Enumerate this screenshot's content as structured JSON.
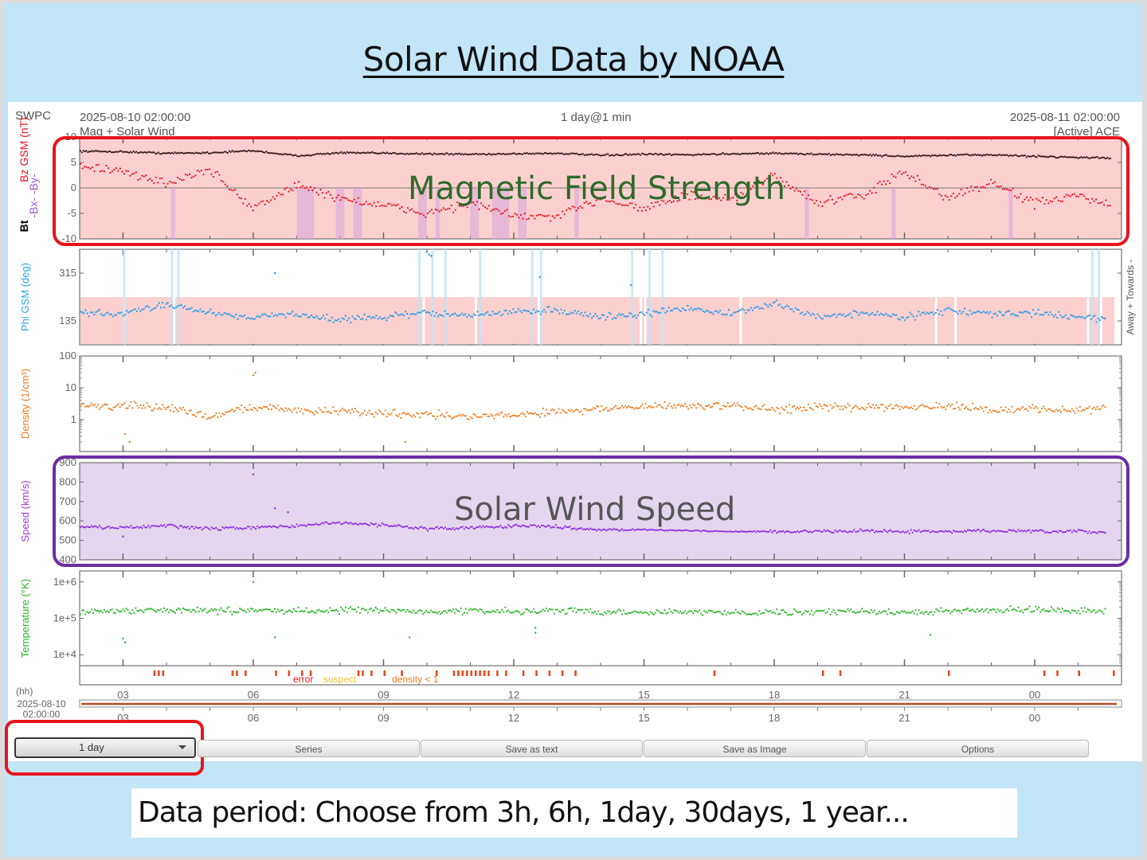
{
  "slide": {
    "title": "Solar Wind Data by NOAA",
    "note": "Data period: Choose  from 3h, 6h, 1day, 30days, 1 year...",
    "callouts": {
      "magnetic": "Magnetic Field Strength",
      "speed": "Solar Wind Speed"
    },
    "colors": {
      "background": "#c3e5f8",
      "magnetic_box": "#e8141c",
      "speed_box": "#6a2ea0",
      "period_box": "#e8141c",
      "magnetic_text": "#2f6b2a",
      "speed_text": "#555555"
    }
  },
  "header": {
    "source": "SWPC",
    "start": "2025-08-10 02:00:00",
    "subtitle": "Mag + Solar Wind",
    "resolution": "1 day@1 min",
    "end": "2025-08-11 02:00:00",
    "spacecraft": "[Active] ACE"
  },
  "controls": {
    "period": "1 day",
    "buttons": [
      "Series",
      "Save as text",
      "Save as Image",
      "Options"
    ]
  },
  "chart_data": [
    {
      "type": "scatter",
      "id": "mag",
      "title": "Magnetic field",
      "ylabel_parts": [
        {
          "text": "Bt",
          "color": "#000000"
        },
        {
          "text": "-Bx- -By-",
          "color": "#9b59d0"
        },
        {
          "text": "Bz GSM (nT)",
          "color": "#e8141c"
        }
      ],
      "ylim": [
        -10,
        10
      ],
      "yticks": [
        10,
        5,
        0,
        -5,
        -10
      ],
      "x_hours": [
        0,
        24
      ],
      "series": [
        {
          "name": "Bt",
          "color": "#3a1a1a",
          "values_hourly": [
            7.2,
            7.1,
            6.8,
            6.9,
            7.3,
            6.3,
            6.9,
            6.8,
            6.7,
            6.6,
            6.7,
            6.8,
            6.4,
            6.6,
            6.5,
            6.7,
            6.8,
            6.6,
            6.5,
            6.2,
            6.4,
            6.5,
            6.2,
            6.0,
            5.8
          ]
        },
        {
          "name": "Bz",
          "color": "#e8141c",
          "values_hourly": [
            4.5,
            3.0,
            1.0,
            3.5,
            -4.0,
            0.5,
            -2.0,
            -3.5,
            -5.0,
            -3.0,
            -5.5,
            -5.8,
            -2.0,
            -4.0,
            -1.5,
            -2.5,
            2.5,
            -3.0,
            -1.5,
            3.0,
            -2.0,
            1.0,
            -3.0,
            -1.5,
            -4.5
          ]
        }
      ]
    },
    {
      "type": "scatter",
      "id": "phi",
      "ylabel": "Phi GSM (deg)",
      "ylabel_color": "#2aa7e6",
      "right_label": "Away + Towards -",
      "ylim": [
        45,
        405
      ],
      "yticks": [
        315,
        135
      ],
      "sector_band": [
        45,
        225
      ],
      "series": [
        {
          "name": "Phi",
          "color": "#3aa0e0",
          "values_hourly": [
            165,
            160,
            200,
            165,
            150,
            160,
            140,
            150,
            165,
            155,
            170,
            175,
            150,
            160,
            185,
            160,
            200,
            150,
            165,
            150,
            175,
            160,
            165,
            150,
            140
          ]
        }
      ]
    },
    {
      "type": "scatter",
      "id": "density",
      "ylabel": "Density (1/cm³)",
      "ylabel_color": "#f07d22",
      "yscale": "log",
      "ylim": [
        0.1,
        100
      ],
      "yticks": [
        100,
        10,
        1
      ],
      "series": [
        {
          "name": "Density",
          "color": "#f07d22",
          "values_hourly": [
            2.8,
            2.6,
            2.4,
            1.2,
            2.5,
            2.0,
            1.8,
            1.6,
            1.5,
            1.2,
            1.4,
            1.8,
            2.2,
            2.5,
            2.8,
            2.6,
            2.2,
            2.4,
            2.5,
            2.7,
            2.5,
            2.0,
            2.2,
            2.0,
            2.4
          ]
        }
      ]
    },
    {
      "type": "scatter",
      "id": "speed",
      "ylabel": "Speed (km/s)",
      "ylabel_color": "#9b3fd6",
      "ylim": [
        400,
        900
      ],
      "yticks": [
        900,
        800,
        700,
        600,
        500,
        400
      ],
      "series": [
        {
          "name": "Speed",
          "color": "#8a2be2",
          "values_hourly": [
            570,
            565,
            575,
            560,
            565,
            575,
            590,
            580,
            560,
            565,
            575,
            570,
            555,
            555,
            550,
            545,
            545,
            545,
            550,
            545,
            545,
            550,
            545,
            545,
            540
          ]
        }
      ]
    },
    {
      "type": "scatter",
      "id": "temperature",
      "ylabel": "Temperature (°K)",
      "ylabel_color": "#2bb52b",
      "yscale": "log",
      "ylim": [
        5000,
        2000000
      ],
      "yticks": [
        "1e+6",
        "1e+5",
        "1e+4"
      ],
      "ytick_values": [
        1000000,
        100000,
        10000
      ],
      "series": [
        {
          "name": "Temperature",
          "color": "#2bb52b",
          "values_hourly": [
            150000,
            160000,
            170000,
            160000,
            165000,
            160000,
            170000,
            165000,
            150000,
            160000,
            155000,
            165000,
            150000,
            150000,
            145000,
            150000,
            145000,
            150000,
            155000,
            140000,
            160000,
            170000,
            175000,
            165000,
            160000
          ]
        }
      ]
    },
    {
      "type": "table",
      "id": "flags",
      "legend": [
        {
          "text": "error",
          "color": "#e8141c"
        },
        {
          "text": "suspect",
          "color": "#f2c232"
        },
        {
          "text": "density < 1",
          "color": "#f07d22"
        }
      ],
      "flag_hours": [
        1.7,
        1.8,
        1.9,
        3.5,
        3.6,
        3.8,
        4.5,
        4.8,
        5.1,
        5.3,
        6.4,
        6.5,
        6.7,
        7.0,
        7.4,
        8.2,
        8.6,
        8.7,
        8.8,
        8.9,
        9.0,
        9.1,
        9.2,
        9.3,
        9.4,
        9.6,
        9.8,
        10.2,
        10.5,
        10.8,
        11.1,
        11.4,
        14.6,
        17.1,
        17.5,
        20.0,
        22.2,
        22.5,
        23.0,
        23.8
      ]
    }
  ],
  "time_axis": {
    "unit_label": "(hh)",
    "date_label": "2025-08-10",
    "time_label": "02:00:00",
    "ticks": [
      "03",
      "06",
      "09",
      "12",
      "15",
      "18",
      "21",
      "00"
    ],
    "tick_hours_from_start": [
      1,
      4,
      7,
      10,
      13,
      16,
      19,
      22
    ]
  }
}
